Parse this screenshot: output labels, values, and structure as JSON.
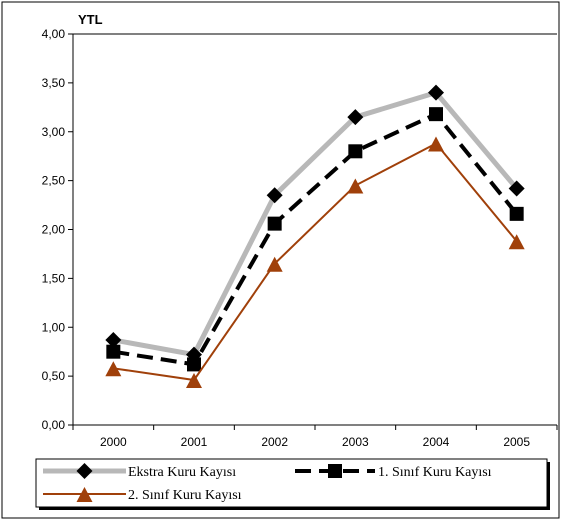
{
  "chart_data": {
    "type": "line",
    "unit_label": "YTL",
    "categories": [
      "2000",
      "2001",
      "2002",
      "2003",
      "2004",
      "2005"
    ],
    "y_ticks": [
      "0,00",
      "0,50",
      "1,00",
      "1,50",
      "2,00",
      "2,50",
      "3,00",
      "3,50",
      "4,00"
    ],
    "ylim": [
      0,
      4
    ],
    "grid": false,
    "legend_position": "bottom",
    "series": [
      {
        "name": "Ekstra Kuru Kayısı",
        "values": [
          0.87,
          0.72,
          2.35,
          3.15,
          3.4,
          2.42
        ],
        "line_color": "#b8b8b8",
        "marker_color": "#000000",
        "marker": "diamond",
        "line_style": "solid"
      },
      {
        "name": "1. Sınıf  Kuru Kayısı",
        "values": [
          0.75,
          0.62,
          2.06,
          2.8,
          3.18,
          2.16
        ],
        "line_color": "#000000",
        "marker_color": "#000000",
        "marker": "square",
        "line_style": "dashed"
      },
      {
        "name": "2. Sınıf  Kuru Kayısı",
        "values": [
          0.58,
          0.46,
          1.65,
          2.45,
          2.88,
          1.88
        ],
        "line_color": "#a0400a",
        "marker_color": "#a0400a",
        "marker": "triangle",
        "line_style": "solid"
      }
    ]
  }
}
